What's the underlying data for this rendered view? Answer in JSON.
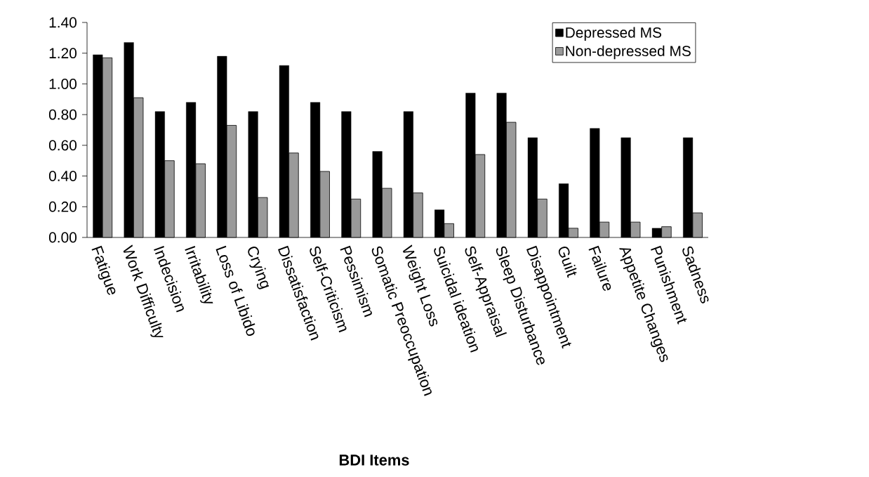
{
  "chart_data": {
    "type": "bar",
    "xlabel": "BDI Items",
    "categories": [
      "Fatigue",
      "Work Difficulty",
      "Indecision",
      "Irritability",
      "Loss of Libido",
      "Crying",
      "Dissatisfaction",
      "Self-Criticism",
      "Pessimism",
      "Somatic Preoccupation",
      "Weight Loss",
      "Suicidal ideation",
      "Self-Appraisal",
      "Sleep Disturbance",
      "Disappointment",
      "Guilt",
      "Failure",
      "Appetite Changes",
      "Punishment",
      "Sadness"
    ],
    "series": [
      {
        "name": "Depressed MS",
        "color": "#000000",
        "values": [
          1.19,
          1.27,
          0.82,
          0.88,
          1.18,
          0.82,
          1.12,
          0.88,
          0.82,
          0.56,
          0.82,
          0.18,
          0.94,
          0.94,
          0.65,
          0.35,
          0.71,
          0.65,
          0.06,
          0.65
        ]
      },
      {
        "name": "Non-depressed MS",
        "color": "#9a9a9a",
        "values": [
          1.17,
          0.91,
          0.5,
          0.48,
          0.73,
          0.26,
          0.55,
          0.43,
          0.25,
          0.32,
          0.29,
          0.09,
          0.54,
          0.75,
          0.25,
          0.06,
          0.1,
          0.1,
          0.07,
          0.16
        ]
      }
    ],
    "ylim": [
      0,
      1.4
    ],
    "yticks": [
      {
        "value": 0,
        "label": "0.00"
      },
      {
        "value": 0.2,
        "label": "0.20"
      },
      {
        "value": 0.4,
        "label": "0.40"
      },
      {
        "value": 0.6,
        "label": "0.60"
      },
      {
        "value": 0.8,
        "label": "0.80"
      },
      {
        "value": 1.0,
        "label": "1.00"
      },
      {
        "value": 1.2,
        "label": "1.20"
      },
      {
        "value": 1.4,
        "label": "1.40"
      }
    ],
    "grid": false,
    "legend": "top right"
  }
}
